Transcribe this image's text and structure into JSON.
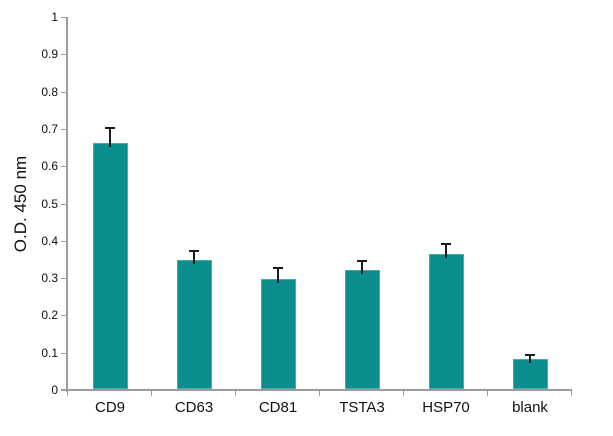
{
  "chart_data": {
    "type": "bar",
    "title": "",
    "ylabel": "O.D. 450 nm",
    "xlabel": "",
    "categories": [
      "CD9",
      "CD63",
      "CD81",
      "TSTA3",
      "HSP70",
      "blank"
    ],
    "values": [
      0.66,
      0.345,
      0.295,
      0.32,
      0.363,
      0.08
    ],
    "errors": [
      0.04,
      0.025,
      0.03,
      0.025,
      0.028,
      0.012
    ],
    "ylim": [
      0,
      1
    ],
    "ytick_step": 0.1,
    "ytick_labels": [
      "0",
      "0.1",
      "0.2",
      "0.3",
      "0.4",
      "0.5",
      "0.6",
      "0.7",
      "0.8",
      "0.9",
      "1"
    ],
    "grid": false,
    "legend": null,
    "colors": {
      "bar_fill": "#0c8e8e",
      "bar_border": "#45aba9",
      "axis": "#9c9c9c",
      "error_bar": "#1a1a1a",
      "text": "#111111",
      "background": "#ffffff"
    }
  }
}
